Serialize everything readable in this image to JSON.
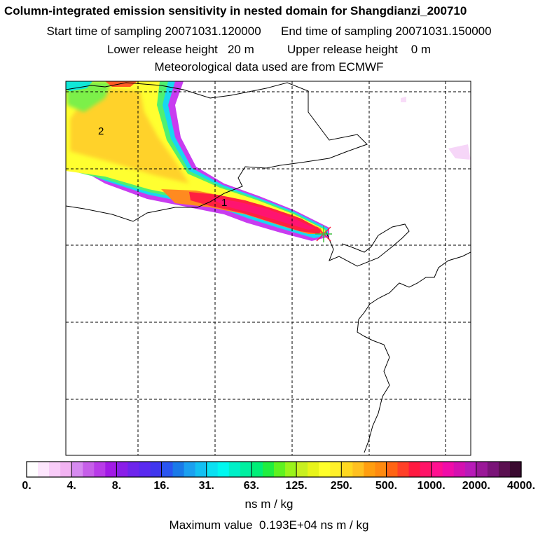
{
  "header": {
    "title": "Column-integrated emission sensitivity in nested domain for Shangdianzi_200710",
    "start": "Start time of sampling 20071031.120000",
    "end": "End time of sampling 20071031.150000",
    "lower": "Lower release height   20 m",
    "upper": "Upper release height    0 m",
    "met": "Meteorological data used are from ECMWF"
  },
  "map": {
    "labels": [
      "2",
      "1"
    ],
    "release_marker": "release-point-x-icon",
    "colors": {
      "plume_red": "#ff1a40",
      "plume_yellow": "#ffff33",
      "plume_cyan": "#00ffff",
      "plume_magenta": "#cc00ff",
      "grid": "#000000"
    }
  },
  "colorbar": {
    "ticks": [
      "0.",
      "4.",
      "8.",
      "16.",
      "31.",
      "63.",
      "125.",
      "250.",
      "500.",
      "1000.",
      "2000.",
      "4000."
    ],
    "colors": [
      "#ffffff",
      "#fde6fd",
      "#f8ccf8",
      "#f2b3f2",
      "#d68af0",
      "#c65fe9",
      "#b83be8",
      "#a21ae6",
      "#8a1ee8",
      "#6e25ec",
      "#5a2af0",
      "#4036ee",
      "#2a55f0",
      "#1a7ae8",
      "#1ba0f0",
      "#13c0f2",
      "#0be0f2",
      "#00f8f0",
      "#00f0c8",
      "#00f0a0",
      "#00ee78",
      "#20ee40",
      "#5ff220",
      "#9af41a",
      "#c8f020",
      "#e8f41a",
      "#ffff2a",
      "#fff02a",
      "#ffd820",
      "#ffc020",
      "#ff9e10",
      "#ff8a10",
      "#ff6414",
      "#ff4028",
      "#ff1a40",
      "#ff1468",
      "#ff1090",
      "#f00ca8",
      "#d410b0",
      "#b81ab8",
      "#9a1898",
      "#7a1478",
      "#5a1050",
      "#3a0a30"
    ],
    "units": "ns m / kg",
    "max_value": "Maximum value  0.193E+04 ns m / kg"
  }
}
